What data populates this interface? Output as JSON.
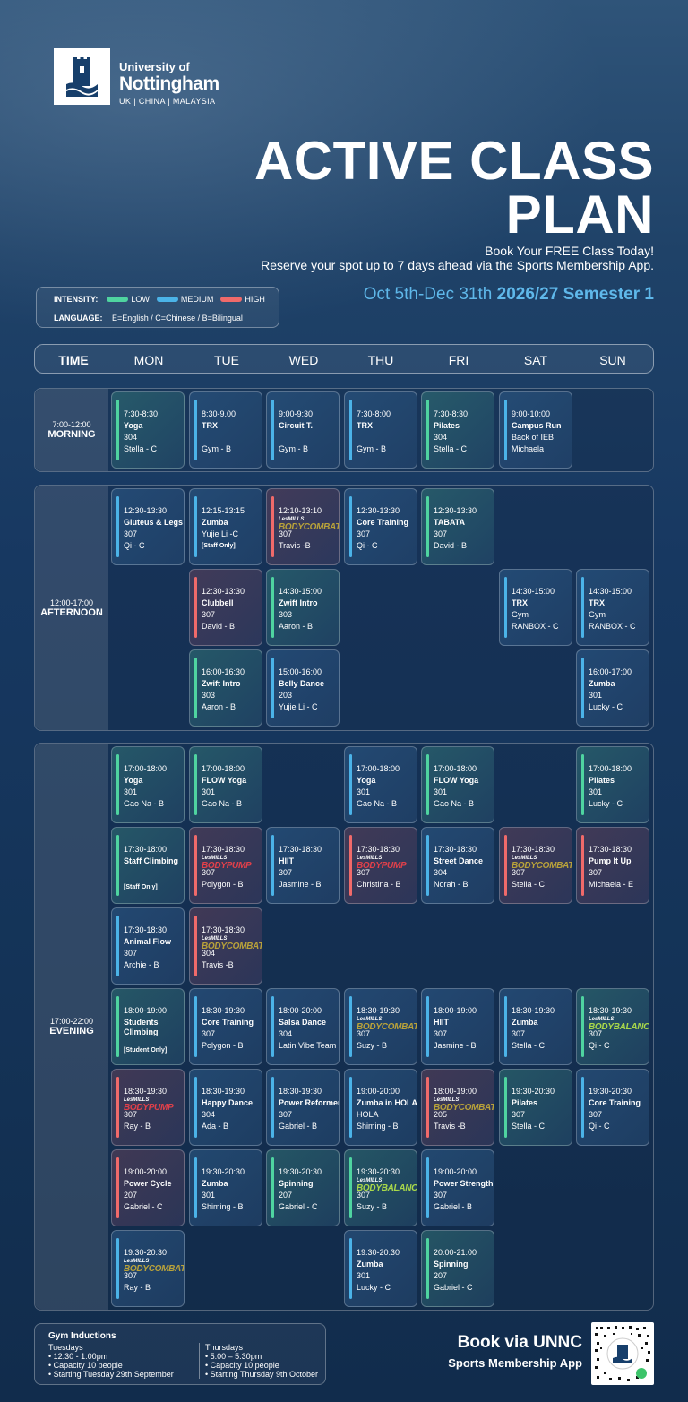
{
  "header": {
    "uni_line1": "University of",
    "uni_line2": "Nottingham",
    "uni_line3": "UK | CHINA | MALAYSIA",
    "title_line1": "ACTIVE CLASS",
    "title_line2": "PLAN",
    "tagline1": "Book Your FREE Class Today!",
    "tagline2": "Reserve your spot up to 7 days ahead via the Sports Membership App.",
    "semester_dates": "Oct 5th-Dec 31th ",
    "semester_name": "2026/27 Semester 1"
  },
  "legend": {
    "intensity_label": "INTENSITY:",
    "low": "LOW",
    "medium": "MEDIUM",
    "high": "HIGH",
    "language_label": "LANGUAGE:",
    "language_text": "E=English / C=Chinese / B=Bilingual"
  },
  "colors": {
    "low": "#4fd4a0",
    "medium": "#4bb3e8",
    "high": "#f06a6a"
  },
  "days": [
    "TIME",
    "MON",
    "TUE",
    "WED",
    "THU",
    "FRI",
    "SAT",
    "SUN"
  ],
  "sections": [
    {
      "time": "7:00-12:00",
      "name": "MORNING"
    },
    {
      "time": "12:00-17:00",
      "name": "AFTERNOON"
    },
    {
      "time": "17:00-22:00",
      "name": "EVENING"
    }
  ],
  "classes": [
    {
      "time": "7:30-8:30",
      "name": "Yoga",
      "loc": "304",
      "inst": "Stella - C",
      "level": "low"
    },
    {
      "time": "8:30-9.00",
      "name": "TRX",
      "loc": "",
      "inst": "Gym - B",
      "level": "medium"
    },
    {
      "time": "9:00-9:30",
      "name": "Circuit T.",
      "loc": "",
      "inst": "Gym - B",
      "level": "medium"
    },
    {
      "time": "7:30-8:00",
      "name": "TRX",
      "loc": "",
      "inst": "Gym - B",
      "level": "medium"
    },
    {
      "time": "7:30-8:30",
      "name": "Pilates",
      "loc": "304",
      "inst": "Stella - C",
      "level": "low"
    },
    {
      "time": "9:00-10:00",
      "name": "Campus Run",
      "loc": "Back of IEB",
      "inst": "Michaela",
      "level": "medium"
    },
    {
      "time": "12:30-13:30",
      "name": "Gluteus & Legs",
      "loc": "307",
      "inst": "Qi - C",
      "level": "medium"
    },
    {
      "time": "12:15-13:15",
      "name": "Zumba",
      "loc": "Yujie Li -C",
      "note": "[Staff Only]",
      "level": "medium"
    },
    {
      "time": "12:10-13:10",
      "brand": "BODYCOMBAT",
      "brandColor": "#b9a23a",
      "loc": "307",
      "inst": "Travis -B",
      "level": "high"
    },
    {
      "time": "12:30-13:30",
      "name": "Core Training",
      "loc": "307",
      "inst": "Qi - C",
      "level": "medium"
    },
    {
      "time": "12:30-13:30",
      "name": "TABATA",
      "loc": "307",
      "inst": "David - B",
      "level": "low"
    },
    {
      "time": "12:30-13:30",
      "name": "Clubbell",
      "loc": "307",
      "inst": "David - B",
      "level": "high"
    },
    {
      "time": "14:30-15:00",
      "name": "Zwift Intro",
      "loc": "303",
      "inst": "Aaron - B",
      "level": "low"
    },
    {
      "time": "14:30-15:00",
      "name": "TRX",
      "loc": "Gym",
      "inst": "RANBOX - C",
      "level": "medium"
    },
    {
      "time": "14:30-15:00",
      "name": "TRX",
      "loc": "Gym",
      "inst": "RANBOX - C",
      "level": "medium"
    },
    {
      "time": "16:00-16:30",
      "name": "Zwift Intro",
      "loc": "303",
      "inst": "Aaron - B",
      "level": "low"
    },
    {
      "time": "15:00-16:00",
      "name": "Belly Dance",
      "loc": "203",
      "inst": "Yujie Li - C",
      "level": "medium"
    },
    {
      "time": "16:00-17:00",
      "name": "Zumba",
      "loc": "301",
      "inst": "Lucky - C",
      "level": "medium"
    },
    {
      "time": "17:00-18:00",
      "name": "Yoga",
      "loc": "301",
      "inst": "Gao Na - B",
      "level": "low"
    },
    {
      "time": "17:00-18:00",
      "name": "FLOW Yoga",
      "loc": "301",
      "inst": "Gao Na - B",
      "level": "low"
    },
    {
      "time": "17:00-18:00",
      "name": "Yoga",
      "loc": "301",
      "inst": "Gao Na - B",
      "level": "medium"
    },
    {
      "time": "17:00-18:00",
      "name": "FLOW Yoga",
      "loc": "301",
      "inst": "Gao Na - B",
      "level": "low"
    },
    {
      "time": "17:00-18:00",
      "name": "Pilates",
      "loc": "301",
      "inst": "Lucky - C",
      "level": "low"
    },
    {
      "time": "17:30-18:00",
      "name": "Staff Climbing",
      "note": "[Staff Only]",
      "level": "low"
    },
    {
      "time": "17:30-18:30",
      "brand": "BODYPUMP",
      "brandColor": "#e2404a",
      "loc": "307",
      "inst": "Polygon - B",
      "level": "high"
    },
    {
      "time": "17:30-18:30",
      "name": "HIIT",
      "loc": "307",
      "inst": "Jasmine - B",
      "level": "medium"
    },
    {
      "time": "17:30-18:30",
      "brand": "BODYPUMP",
      "brandColor": "#e2404a",
      "loc": "307",
      "inst": "Christina - B",
      "level": "high"
    },
    {
      "time": "17:30-18:30",
      "name": "Street Dance",
      "loc": "304",
      "inst": "Norah - B",
      "level": "medium"
    },
    {
      "time": "17:30-18:30",
      "brand": "BODYCOMBAT",
      "brandColor": "#b9a23a",
      "loc": "307",
      "inst": "Stella - C",
      "level": "high"
    },
    {
      "time": "17:30-18:30",
      "name": "Pump It Up",
      "loc": "307",
      "inst": "Michaela - E",
      "level": "high"
    },
    {
      "time": "17:30-18:30",
      "name": "Animal Flow",
      "loc": "307",
      "inst": "Archie - B",
      "level": "medium"
    },
    {
      "time": "17:30-18:30",
      "brand": "BODYCOMBAT",
      "brandColor": "#b9a23a",
      "loc": "304",
      "inst": "Travis -B",
      "level": "high"
    },
    {
      "time": "18:00-19:00",
      "name": "Students",
      "name2": "Climbing",
      "note": "[Student Only]",
      "level": "low"
    },
    {
      "time": "18:30-19:30",
      "name": "Core Training",
      "loc": "307",
      "inst": "Polygon - B",
      "level": "medium"
    },
    {
      "time": "18:00-20:00",
      "name": "Salsa Dance",
      "loc": "304",
      "inst": "Latin Vibe Team -E",
      "level": "medium"
    },
    {
      "time": "18:30-19:30",
      "brand": "BODYCOMBAT",
      "brandColor": "#b9a23a",
      "loc": "307",
      "inst": "Suzy - B",
      "level": "medium"
    },
    {
      "time": "18:00-19:00",
      "name": "HIIT",
      "loc": "307",
      "inst": "Jasmine - B",
      "level": "medium"
    },
    {
      "time": "18:30-19:30",
      "name": "Zumba",
      "loc": "307",
      "inst": "Stella - C",
      "level": "medium"
    },
    {
      "time": "18:30-19:30",
      "brand": "BODYBALANCE",
      "brandColor": "#a9d94a",
      "loc": "307",
      "inst": "Qi - C",
      "level": "low"
    },
    {
      "time": "18:30-19:30",
      "brand": "BODYPUMP",
      "brandColor": "#e2404a",
      "loc": "307",
      "inst": "Ray - B",
      "level": "high"
    },
    {
      "time": "18:30-19:30",
      "name": "Happy Dance",
      "loc": "304",
      "inst": "Ada - B",
      "level": "medium"
    },
    {
      "time": "18:30-19:30",
      "name": "Power Reformer",
      "loc": "307",
      "inst": "Gabriel - B",
      "level": "medium"
    },
    {
      "time": "19:00-20:00",
      "name": "Zumba in HOLA",
      "loc": "HOLA",
      "inst": "Shiming - B",
      "level": "medium"
    },
    {
      "time": "18:00-19:00",
      "brand": "BODYCOMBAT",
      "brandColor": "#b9a23a",
      "loc": "205",
      "inst": "Travis -B",
      "level": "high"
    },
    {
      "time": "19:30-20:30",
      "name": "Pilates",
      "loc": "307",
      "inst": "Stella - C",
      "level": "low"
    },
    {
      "time": "19:30-20:30",
      "name": "Core Training",
      "loc": "307",
      "inst": "Qi - C",
      "level": "medium"
    },
    {
      "time": "19:00-20:00",
      "name": "Power Cycle",
      "loc": "207",
      "inst": "Gabriel - C",
      "level": "high"
    },
    {
      "time": "19:30-20:30",
      "name": "Zumba",
      "loc": "301",
      "inst": "Shiming - B",
      "level": "medium"
    },
    {
      "time": "19:30-20:30",
      "name": "Spinning",
      "loc": "207",
      "inst": "Gabriel - C",
      "level": "low"
    },
    {
      "time": "19:30-20:30",
      "brand": "BODYBALANCE",
      "brandColor": "#a9d94a",
      "loc": "307",
      "inst": "Suzy - B",
      "level": "low"
    },
    {
      "time": "19:00-20:00",
      "name": "Power Strength",
      "loc": "307",
      "inst": "Gabriel - B",
      "level": "medium"
    },
    {
      "time": "19:30-20:30",
      "brand": "BODYCOMBAT",
      "brandColor": "#b9a23a",
      "loc": "307",
      "inst": "Ray - B",
      "level": "medium"
    },
    {
      "time": "19:30-20:30",
      "name": "Zumba",
      "loc": "301",
      "inst": "Lucky - C",
      "level": "medium"
    },
    {
      "time": "20:00-21:00",
      "name": "Spinning",
      "loc": "207",
      "inst": "Gabriel - C",
      "level": "low"
    }
  ],
  "lesmills": "LesMILLS",
  "inductions": {
    "title": "Gym Inductions",
    "col1": [
      "Tuesdays",
      "• 12:30 - 1:00pm",
      "• Capacity 10 people",
      "• Starting Tuesday 29th September"
    ],
    "col2": [
      "Thursdays",
      "• 5:00 – 5:30pm",
      "• Capacity 10 people",
      "• Starting Thursday 9th October"
    ]
  },
  "footer": {
    "book1": "Book via UNNC",
    "book2": "Sports Membership App"
  }
}
